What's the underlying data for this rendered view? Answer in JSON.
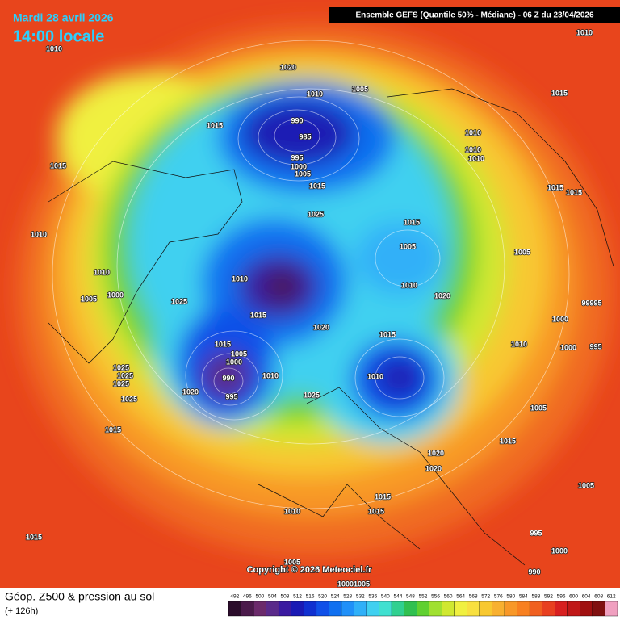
{
  "header": {
    "date": "Mardi 28 avril 2026",
    "time": "14:00 locale",
    "model": "Ensemble GEFS  (Quantile 50% - Médiane) - 06 Z du 23/04/2026"
  },
  "isobars": [
    "1010",
    "1020",
    "1010",
    "1005",
    "1015",
    "990",
    "985",
    "995",
    "1000",
    "1005",
    "1015",
    "1025",
    "1015",
    "1010",
    "1010",
    "1005",
    "1000",
    "1025",
    "1010",
    "1015",
    "1020",
    "1015",
    "1005",
    "1000",
    "990",
    "995",
    "1020",
    "1010",
    "1025",
    "1025",
    "1025",
    "1025",
    "1025",
    "1015",
    "1010",
    "1015",
    "1015",
    "1005",
    "1010",
    "1020",
    "1010",
    "1010",
    "1010",
    "1015",
    "1010",
    "1015",
    "1015",
    "1005",
    "99995",
    "1000",
    "1010",
    "1000",
    "995",
    "1005",
    "1015",
    "1020",
    "1020",
    "1015",
    "1015",
    "1010",
    "1015",
    "1005",
    "1000",
    "1005",
    "995",
    "1000",
    "1005",
    "990"
  ],
  "copyright": "Copyright © 2026 Meteociel.fr",
  "footer": {
    "title": "Géop. Z500 & pression au sol",
    "lead": "(+ 126h)"
  },
  "scale": {
    "values": [
      492,
      496,
      500,
      504,
      508,
      512,
      516,
      520,
      524,
      528,
      532,
      536,
      540,
      544,
      548,
      552,
      556,
      560,
      564,
      568,
      572,
      576,
      580,
      584,
      588,
      592,
      596,
      600,
      604,
      608,
      612
    ],
    "colors": [
      "#2b0d2b",
      "#4b1a4b",
      "#6b2a6b",
      "#5a2a8a",
      "#3a1aa0",
      "#1a1ab4",
      "#1030d0",
      "#1050e8",
      "#1070f0",
      "#2090f8",
      "#30b0f8",
      "#40d0f0",
      "#40e0d0",
      "#30d090",
      "#30c050",
      "#60d030",
      "#a0e030",
      "#d0e830",
      "#f0f040",
      "#f8e040",
      "#f8c830",
      "#f8b030",
      "#f89828",
      "#f88020",
      "#f06020",
      "#e84020",
      "#d82020",
      "#c01818",
      "#a01010",
      "#801010",
      "#f0a0c0"
    ]
  }
}
